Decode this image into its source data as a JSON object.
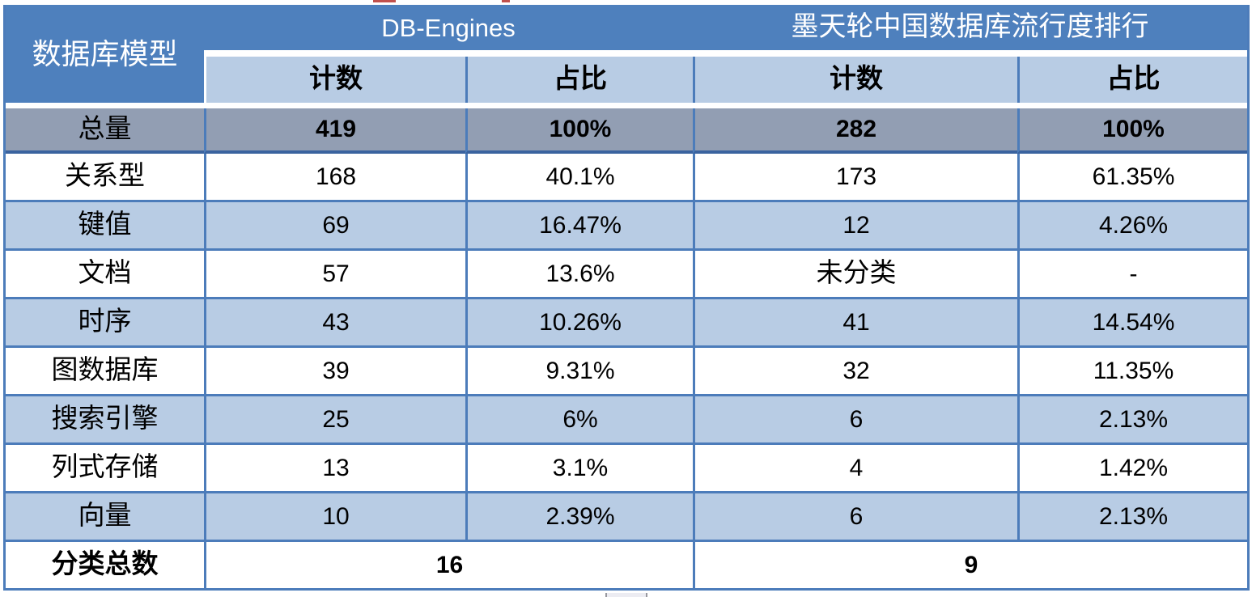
{
  "colors": {
    "header_blue": "#4E80BD",
    "light_blue": "#B8CCE4",
    "total_gray": "#929EB3",
    "border_blue": "#4C7CBA",
    "artifact_red": "#C1504C"
  },
  "table": {
    "corner_header": "数据库模型",
    "groups": [
      {
        "label": "DB-Engines"
      },
      {
        "label": "墨天轮中国数据库流行度排行"
      }
    ],
    "subheaders": [
      "计数",
      "占比",
      "计数",
      "占比"
    ],
    "total_row": {
      "label": "总量",
      "values": [
        "419",
        "100%",
        "282",
        "100%"
      ]
    },
    "rows": [
      {
        "label": "关系型",
        "values": [
          "168",
          "40.1%",
          "173",
          "61.35%"
        ]
      },
      {
        "label": "键值",
        "values": [
          "69",
          "16.47%",
          "12",
          "4.26%"
        ]
      },
      {
        "label": "文档",
        "values": [
          "57",
          "13.6%",
          "未分类",
          "-"
        ]
      },
      {
        "label": "时序",
        "values": [
          "43",
          "10.26%",
          "41",
          "14.54%"
        ]
      },
      {
        "label": "图数据库",
        "values": [
          "39",
          "9.31%",
          "32",
          "11.35%"
        ]
      },
      {
        "label": "搜索引擎",
        "values": [
          "25",
          "6%",
          "6",
          "2.13%"
        ]
      },
      {
        "label": "列式存储",
        "values": [
          "13",
          "3.1%",
          "4",
          "1.42%"
        ]
      },
      {
        "label": "向量",
        "values": [
          "10",
          "2.39%",
          "6",
          "2.13%"
        ]
      }
    ],
    "footer": {
      "label": "分类总数",
      "values": [
        "16",
        "9"
      ]
    }
  },
  "chart_data": {
    "type": "table",
    "columns": [
      "数据库模型",
      "DB-Engines 计数",
      "DB-Engines 占比",
      "墨天轮中国数据库流行度排行 计数",
      "墨天轮中国数据库流行度排行 占比"
    ],
    "categories": [
      "总量",
      "关系型",
      "键值",
      "文档",
      "时序",
      "图数据库",
      "搜索引擎",
      "列式存储",
      "向量"
    ],
    "series": [
      {
        "name": "DB-Engines 计数",
        "values": [
          "419",
          "168",
          "69",
          "57",
          "43",
          "39",
          "25",
          "13",
          "10"
        ]
      },
      {
        "name": "DB-Engines 占比",
        "values": [
          "100%",
          "40.1%",
          "16.47%",
          "13.6%",
          "10.26%",
          "9.31%",
          "6%",
          "3.1%",
          "2.39%"
        ]
      },
      {
        "name": "墨天轮 计数",
        "values": [
          "282",
          "173",
          "12",
          "未分类",
          "41",
          "32",
          "6",
          "4",
          "6"
        ]
      },
      {
        "name": "墨天轮 占比",
        "values": [
          "100%",
          "61.35%",
          "4.26%",
          "-",
          "14.54%",
          "11.35%",
          "2.13%",
          "1.42%",
          "2.13%"
        ]
      }
    ],
    "footer_row": {
      "label": "分类总数",
      "db_engines_total": "16",
      "modb_total": "9"
    }
  }
}
